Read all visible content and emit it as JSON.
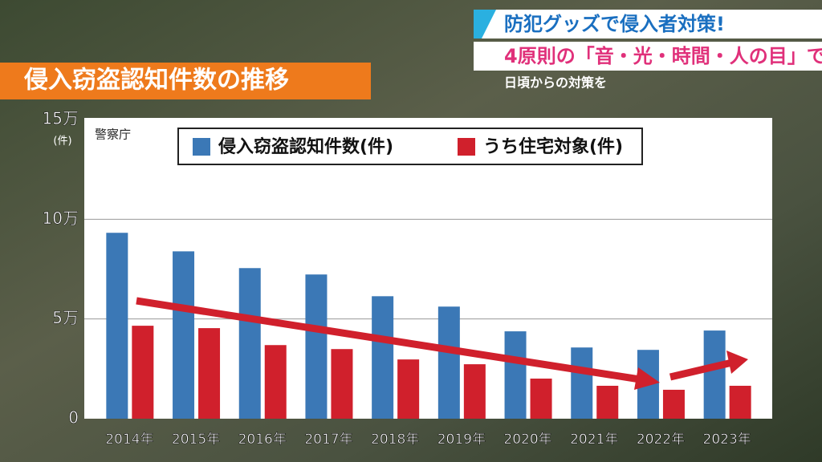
{
  "caption": {
    "line1": "防犯グッズで侵入者対策!",
    "line2": "4原則の「音・光・時間・人の目」で",
    "line3": "日頃からの対策を"
  },
  "chart_data": {
    "type": "bar",
    "title": "侵入窃盗認知件数の推移",
    "source": "警察庁",
    "y_unit": "(件)",
    "categories": [
      "2014年",
      "2015年",
      "2016年",
      "2017年",
      "2018年",
      "2019年",
      "2020年",
      "2021年",
      "2022年",
      "2023年"
    ],
    "series": [
      {
        "name": "侵入窃盗認知件数(件)",
        "color": "#3b78b6",
        "values": [
          93200,
          83900,
          75500,
          72300,
          61400,
          56200,
          43800,
          35700,
          34500,
          44200
        ]
      },
      {
        "name": "うち住宅対象(件)",
        "color": "#d0202c",
        "values": [
          46600,
          45400,
          36900,
          34900,
          29700,
          27300,
          20100,
          16500,
          14500,
          16500
        ]
      }
    ],
    "ylim": [
      0,
      150000
    ],
    "yticks": [
      0,
      {
        "value": 50000,
        "label": "5万"
      },
      {
        "value": 100000,
        "label": "10万"
      },
      {
        "value": 150000,
        "label": "15万"
      }
    ],
    "grid": true,
    "legend": "top"
  }
}
